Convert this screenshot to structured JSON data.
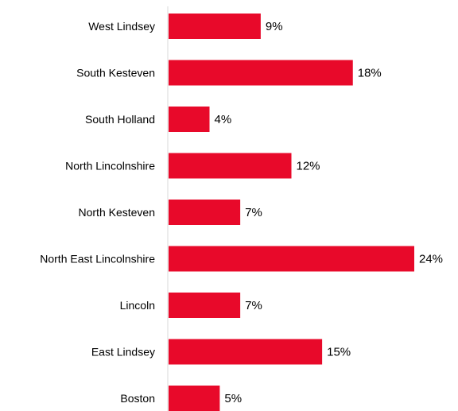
{
  "chart_data": {
    "type": "bar",
    "orientation": "horizontal",
    "categories": [
      "West Lindsey",
      "South Kesteven",
      "South Holland",
      "North Lincolnshire",
      "North Kesteven",
      "North East Lincolnshire",
      "Lincoln",
      "East Lindsey",
      "Boston"
    ],
    "values": [
      9,
      18,
      4,
      12,
      7,
      24,
      7,
      15,
      5
    ],
    "value_labels": [
      "9%",
      "18%",
      "4%",
      "12%",
      "7%",
      "24%",
      "7%",
      "15%",
      "5%"
    ],
    "title": "",
    "xlabel": "",
    "ylabel": "",
    "xlim": [
      0,
      24
    ],
    "grid": false,
    "legend": "none",
    "bar_color": "#E8092A",
    "axis_color": "#D9D9D9"
  }
}
